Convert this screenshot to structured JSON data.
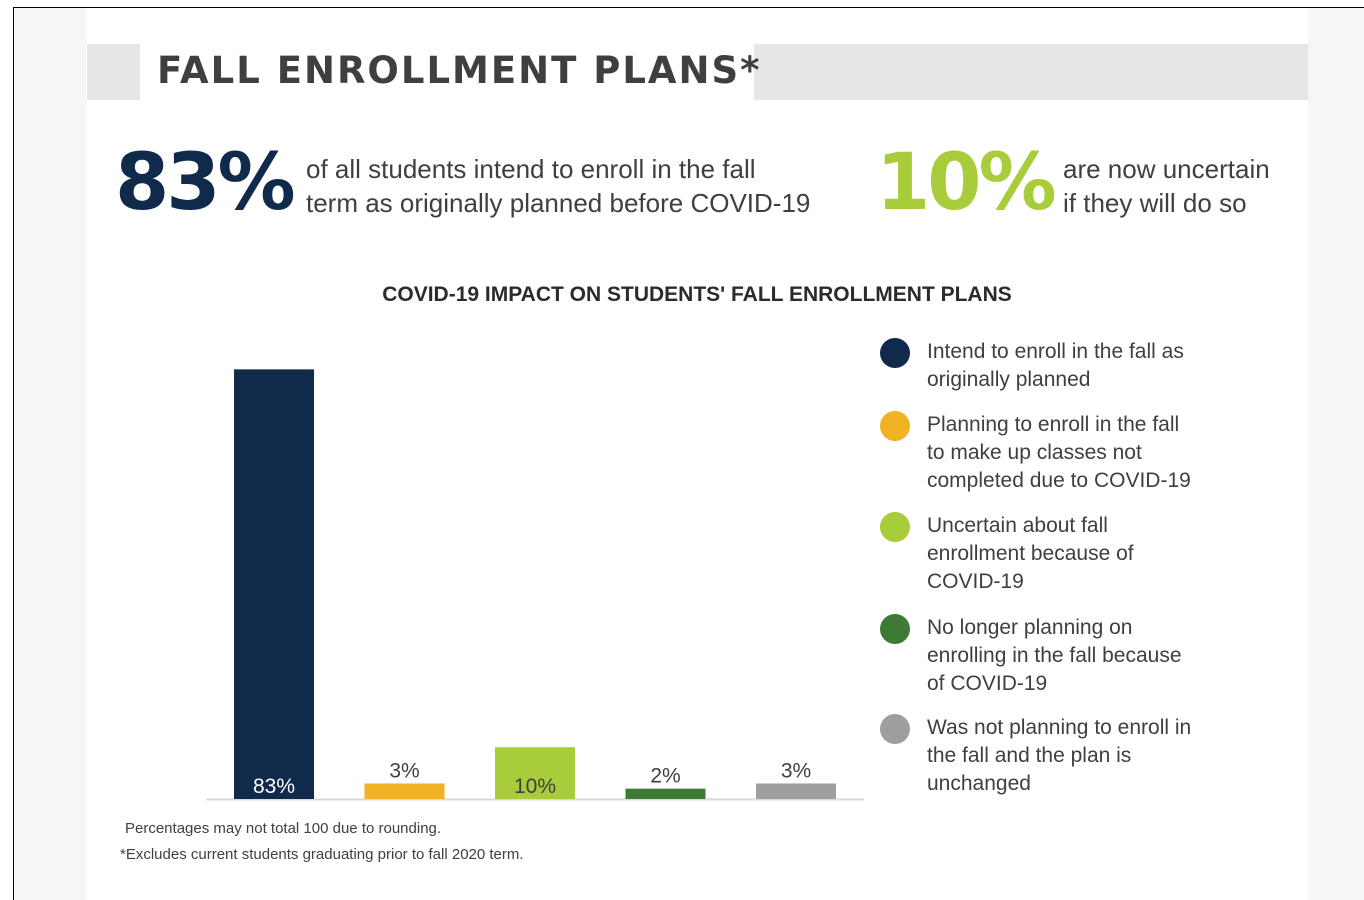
{
  "header": {
    "title": "FALL ENROLLMENT PLANS*"
  },
  "stats": [
    {
      "value": "83%",
      "lines": [
        "of all students intend to enroll in the fall",
        "term as originally planned before COVID-19"
      ],
      "color": "#0f2a4b"
    },
    {
      "value": "10%",
      "lines": [
        "are now uncertain",
        "if they will do so"
      ],
      "color": "#a8cc3a"
    }
  ],
  "chart_data": {
    "type": "bar",
    "title": "COVID-19 IMPACT ON STUDENTS' FALL ENROLLMENT PLANS",
    "xlabel": "",
    "ylabel": "",
    "ylim": [
      0,
      85
    ],
    "grid": false,
    "legend_position": "right",
    "categories": [
      "Intend to enroll in the fall as originally planned",
      "Planning to enroll in the fall to make up classes not completed due to COVID-19",
      "Uncertain about fall enrollment because of COVID-19",
      "No longer planning on enrolling in the fall because of COVID-19",
      "Was not planning to enroll in the fall and the plan is unchanged"
    ],
    "values": [
      83,
      3,
      10,
      2,
      3
    ],
    "data_labels": [
      "83%",
      "3%",
      "10%",
      "2%",
      "3%"
    ],
    "label_position": [
      "inside",
      "above",
      "inside",
      "above",
      "above"
    ],
    "colors": [
      "#0f2a4b",
      "#f0b323",
      "#a8cc3a",
      "#3d7a34",
      "#9e9e9e"
    ],
    "label_colors": [
      "#ffffff",
      "#3f3f3f",
      "#3f3f3f",
      "#3f3f3f",
      "#3f3f3f"
    ],
    "legend": [
      {
        "lines": [
          "Intend to enroll in the fall as",
          "originally planned"
        ],
        "color": "#0f2a4b"
      },
      {
        "lines": [
          "Planning to enroll in the fall",
          "to make up classes not",
          "completed due to COVID-19"
        ],
        "color": "#f0b323"
      },
      {
        "lines": [
          "Uncertain about fall",
          "enrollment because of",
          "COVID-19"
        ],
        "color": "#a8cc3a"
      },
      {
        "lines": [
          "No longer planning on",
          "enrolling in the fall because",
          "of COVID-19"
        ],
        "color": "#3d7a34"
      },
      {
        "lines": [
          "Was not planning to enroll in",
          "the fall and the plan is",
          "unchanged"
        ],
        "color": "#9e9e9e"
      }
    ]
  },
  "footnotes": [
    "Percentages may not total 100 due to rounding.",
    "*Excludes current students graduating prior to fall 2020 term."
  ]
}
